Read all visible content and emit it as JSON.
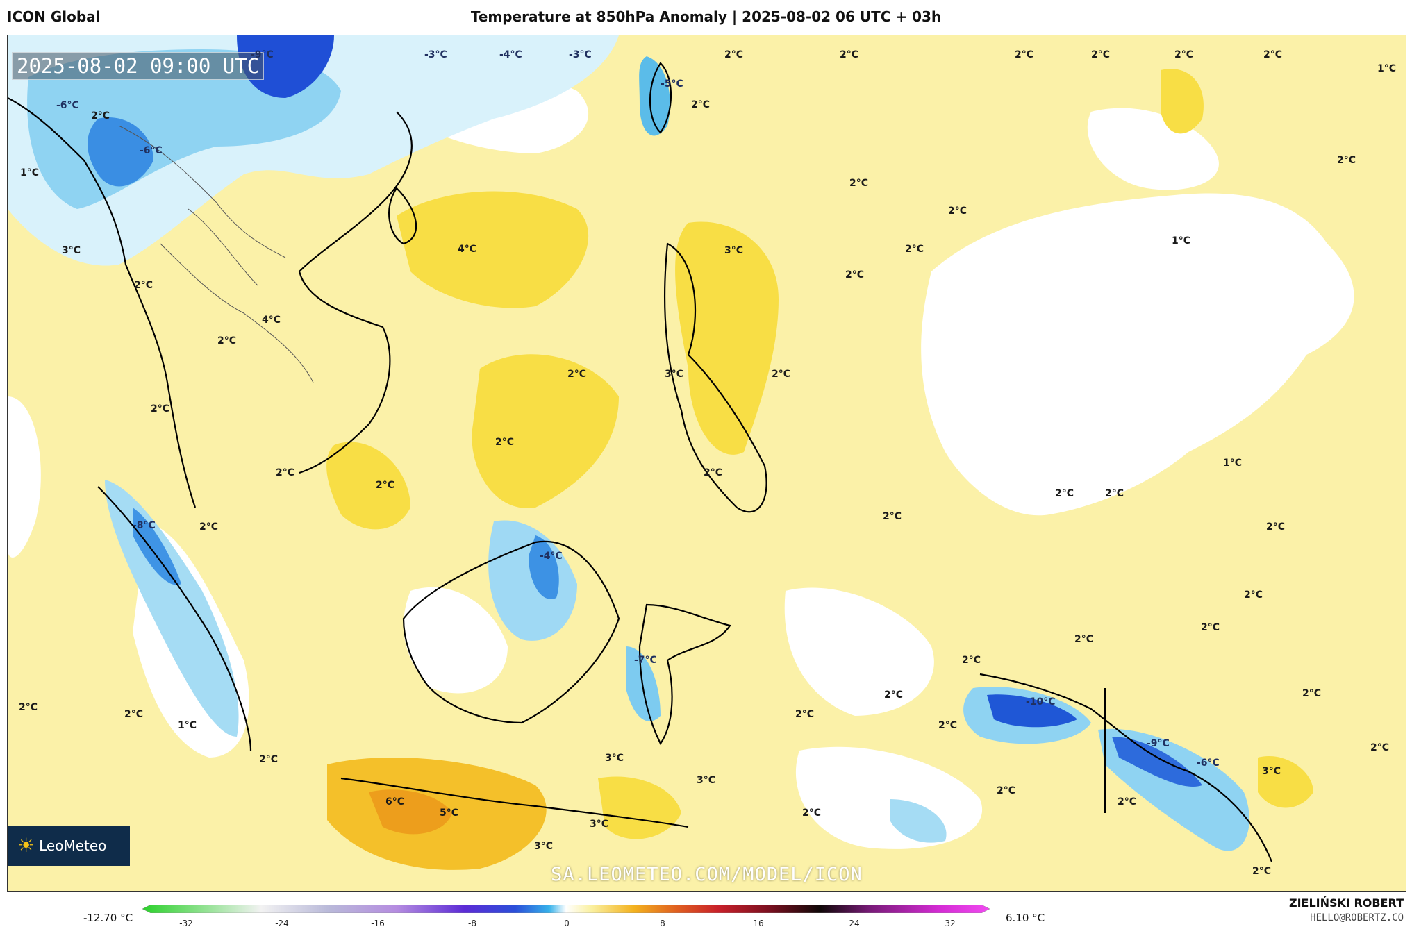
{
  "header": {
    "model": "ICON Global",
    "title": "Temperature at 850hPa Anomaly | 2025-08-02 06 UTC + 03h"
  },
  "map": {
    "timestamp": "2025-08-02 09:00 UTC",
    "watermark": "SA.LEOMETEO.COM/MODEL/ICON",
    "logo_text": "LeoMeteo",
    "logo_icon": "sun-icon",
    "labels": [
      {
        "text": "-9°C"
      },
      {
        "text": "-3°C"
      },
      {
        "text": "-4°C"
      },
      {
        "text": "-3°C"
      },
      {
        "text": "2°C"
      },
      {
        "text": "2°C"
      },
      {
        "text": "2°C"
      },
      {
        "text": "2°C"
      },
      {
        "text": "2°C"
      },
      {
        "text": "2°C"
      },
      {
        "text": "1°C"
      },
      {
        "text": "-6°C"
      },
      {
        "text": "2°C"
      },
      {
        "text": "-6°C"
      },
      {
        "text": "1°C"
      },
      {
        "text": "-5°C"
      },
      {
        "text": "2°C"
      },
      {
        "text": "2°C"
      },
      {
        "text": "2°C"
      },
      {
        "text": "3°C"
      },
      {
        "text": "4°C"
      },
      {
        "text": "3°C"
      },
      {
        "text": "2°C"
      },
      {
        "text": "1°C"
      },
      {
        "text": "2°C"
      },
      {
        "text": "2°C"
      },
      {
        "text": "4°C"
      },
      {
        "text": "2°C"
      },
      {
        "text": "2°C"
      },
      {
        "text": "3°C"
      },
      {
        "text": "2°C"
      },
      {
        "text": "2°C"
      },
      {
        "text": "2°C"
      },
      {
        "text": "2°C"
      },
      {
        "text": "2°C"
      },
      {
        "text": "2°C"
      },
      {
        "text": "1°C"
      },
      {
        "text": "2°C"
      },
      {
        "text": "2°C"
      },
      {
        "text": "2°C"
      },
      {
        "text": "2°C"
      },
      {
        "text": "-8°C"
      },
      {
        "text": "2°C"
      },
      {
        "text": "-4°C"
      },
      {
        "text": "2°C"
      },
      {
        "text": "2°C"
      },
      {
        "text": "2°C"
      },
      {
        "text": "2°C"
      },
      {
        "text": "-7°C"
      },
      {
        "text": "2°C"
      },
      {
        "text": "2°C"
      },
      {
        "text": "-10°C"
      },
      {
        "text": "2°C"
      },
      {
        "text": "2°C"
      },
      {
        "text": "2°C"
      },
      {
        "text": "1°C"
      },
      {
        "text": "2°C"
      },
      {
        "text": "2°C"
      },
      {
        "text": "2°C"
      },
      {
        "text": "2°C"
      },
      {
        "text": "-9°C"
      },
      {
        "text": "-6°C"
      },
      {
        "text": "2°C"
      },
      {
        "text": "3°C"
      },
      {
        "text": "3°C"
      },
      {
        "text": "3°C"
      },
      {
        "text": "3°C"
      },
      {
        "text": "6°C"
      },
      {
        "text": "5°C"
      },
      {
        "text": "2°C"
      },
      {
        "text": "2°C"
      },
      {
        "text": "3°C"
      },
      {
        "text": "2°C"
      }
    ]
  },
  "colorbar": {
    "min_label": "-12.70 °C",
    "max_label": "6.10 °C",
    "ticks": [
      "-32",
      "-24",
      "-16",
      "-8",
      "0",
      "8",
      "16",
      "24",
      "32"
    ]
  },
  "credits": {
    "author": "ZIELIŃSKI ROBERT",
    "email": "HELLO@ROBERTZ.CO"
  },
  "colors": {
    "warm_light": "#fbf0a6",
    "warm_mid": "#f8dc3a",
    "warm_high": "#f3b21f",
    "cold_light": "#d8f1fb",
    "cold_mid": "#5bbce9",
    "cold_deep": "#1f57d6"
  }
}
